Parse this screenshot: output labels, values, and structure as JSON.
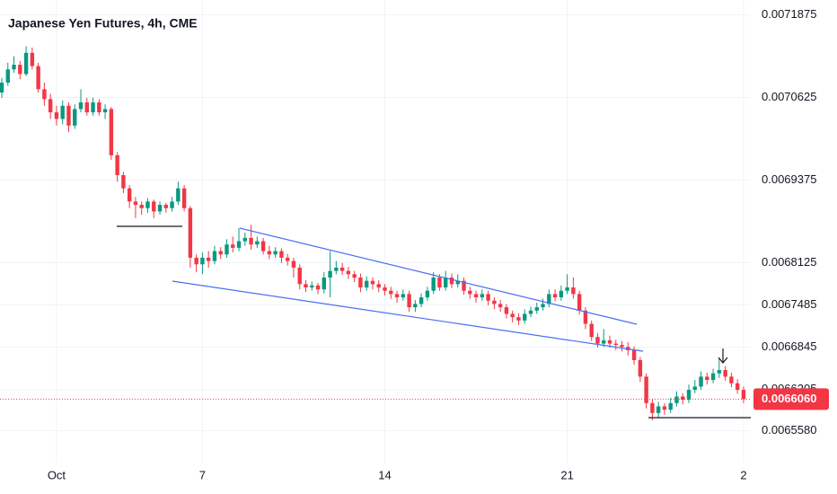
{
  "chart_data": {
    "type": "candlestick",
    "title": "Japanese Yen Futures, 4h, CME",
    "categories": [
      null,
      null,
      null,
      null,
      null,
      null,
      null,
      null,
      null,
      "Oct",
      null,
      null,
      null,
      null,
      null,
      null,
      null,
      null,
      null,
      null,
      null,
      null,
      null,
      null,
      null,
      null,
      null,
      null,
      null,
      null,
      null,
      null,
      null,
      "7",
      null,
      null,
      null,
      null,
      null,
      null,
      null,
      null,
      null,
      null,
      null,
      null,
      null,
      null,
      null,
      null,
      null,
      null,
      null,
      null,
      null,
      null,
      null,
      null,
      null,
      null,
      null,
      null,
      null,
      "14",
      null,
      null,
      null,
      null,
      null,
      null,
      null,
      null,
      null,
      null,
      null,
      null,
      null,
      null,
      null,
      null,
      null,
      null,
      null,
      null,
      null,
      null,
      null,
      null,
      null,
      null,
      null,
      null,
      null,
      "21",
      null,
      null,
      null,
      null,
      null,
      null,
      null,
      null,
      null,
      null,
      null,
      null,
      null,
      null,
      null,
      null,
      null,
      null,
      null,
      null,
      null,
      null,
      null,
      null,
      null,
      null,
      null,
      null,
      "2"
    ],
    "open": [
      0.00707,
      0.007085,
      0.007105,
      0.007112,
      0.007098,
      0.00713,
      0.00711,
      0.007075,
      0.00706,
      0.00704,
      0.00703,
      0.00705,
      0.00702,
      0.007045,
      0.007055,
      0.00704,
      0.007055,
      0.00704,
      0.007045,
      0.006975,
      0.006945,
      0.006925,
      0.006905,
      0.0069,
      0.006895,
      0.006905,
      0.00689,
      0.0069,
      0.006895,
      0.006905,
      0.006925,
      0.006895,
      0.00682,
      0.00681,
      0.00682,
      0.006815,
      0.00683,
      0.006825,
      0.00684,
      0.006835,
      0.006845,
      0.00685,
      0.00684,
      0.006845,
      0.00683,
      0.006825,
      0.00683,
      0.00682,
      0.006815,
      0.006805,
      0.00678,
      0.006775,
      0.006778,
      0.006772,
      0.00679,
      0.0068,
      0.006805,
      0.0068,
      0.006795,
      0.00679,
      0.006775,
      0.006785,
      0.00678,
      0.006775,
      0.00677,
      0.006765,
      0.00676,
      0.006765,
      0.006745,
      0.00675,
      0.00676,
      0.00677,
      0.00679,
      0.006775,
      0.00679,
      0.00678,
      0.006785,
      0.00677,
      0.006765,
      0.00676,
      0.006765,
      0.006755,
      0.00675,
      0.006745,
      0.006735,
      0.00673,
      0.006725,
      0.006735,
      0.00674,
      0.006745,
      0.00675,
      0.006765,
      0.00676,
      0.00677,
      0.006775,
      0.006765,
      0.00674,
      0.00672,
      0.0067,
      0.00669,
      0.006695,
      0.00669,
      0.006688,
      0.006685,
      0.00668,
      0.006665,
      0.00664,
      0.0066,
      0.006585,
      0.006595,
      0.00659,
      0.0066,
      0.00661,
      0.006605,
      0.00662,
      0.006625,
      0.00664,
      0.006635,
      0.006645,
      0.00665,
      0.00664,
      0.00663,
      0.00662
    ],
    "high": [
      0.007092,
      0.007115,
      0.007125,
      0.007118,
      0.00714,
      0.007138,
      0.007115,
      0.007085,
      0.007068,
      0.00705,
      0.007058,
      0.007055,
      0.007052,
      0.007075,
      0.007062,
      0.007062,
      0.00706,
      0.007052,
      0.007048,
      0.00698,
      0.00695,
      0.00693,
      0.006912,
      0.006905,
      0.00691,
      0.006908,
      0.006905,
      0.006903,
      0.006912,
      0.006935,
      0.00693,
      0.006898,
      0.006825,
      0.006828,
      0.00683,
      0.006838,
      0.006836,
      0.006848,
      0.006852,
      0.006865,
      0.006858,
      0.00687,
      0.006852,
      0.00685,
      0.006838,
      0.006836,
      0.006834,
      0.006826,
      0.00682,
      0.00681,
      0.006786,
      0.006784,
      0.006782,
      0.006798,
      0.00683,
      0.006815,
      0.006812,
      0.006806,
      0.0068,
      0.006796,
      0.006792,
      0.00679,
      0.006786,
      0.00678,
      0.006776,
      0.00677,
      0.006772,
      0.00677,
      0.006756,
      0.006766,
      0.006776,
      0.006798,
      0.006795,
      0.0068,
      0.006796,
      0.006795,
      0.00679,
      0.006776,
      0.00677,
      0.006772,
      0.00677,
      0.00676,
      0.006756,
      0.00675,
      0.00674,
      0.006736,
      0.006742,
      0.006746,
      0.006752,
      0.006758,
      0.006772,
      0.006772,
      0.006778,
      0.006795,
      0.00679,
      0.00677,
      0.006745,
      0.006725,
      0.006706,
      0.006712,
      0.006702,
      0.006696,
      0.006694,
      0.006692,
      0.006686,
      0.00667,
      0.006645,
      0.006606,
      0.006602,
      0.0066,
      0.006608,
      0.006618,
      0.006615,
      0.006628,
      0.006635,
      0.006648,
      0.006646,
      0.006652,
      0.006668,
      0.006656,
      0.006646,
      0.006636,
      0.006625
    ],
    "low": [
      0.007062,
      0.00708,
      0.0071,
      0.00709,
      0.007095,
      0.007105,
      0.00707,
      0.00705,
      0.00703,
      0.00702,
      0.007022,
      0.00701,
      0.007015,
      0.00704,
      0.007035,
      0.007035,
      0.007035,
      0.00703,
      0.006968,
      0.006935,
      0.006918,
      0.006895,
      0.00688,
      0.006885,
      0.006888,
      0.00688,
      0.006885,
      0.006888,
      0.00689,
      0.0069,
      0.00689,
      0.006805,
      0.006798,
      0.006795,
      0.006805,
      0.00681,
      0.006818,
      0.00682,
      0.006828,
      0.00683,
      0.006838,
      0.006832,
      0.006835,
      0.006825,
      0.006818,
      0.00682,
      0.006812,
      0.006808,
      0.00679,
      0.006772,
      0.006768,
      0.00677,
      0.006765,
      0.006766,
      0.00676,
      0.006795,
      0.006794,
      0.006788,
      0.006783,
      0.006768,
      0.00677,
      0.006772,
      0.006768,
      0.006763,
      0.006758,
      0.006752,
      0.006755,
      0.006738,
      0.006738,
      0.006745,
      0.006755,
      0.006765,
      0.00677,
      0.00677,
      0.006774,
      0.006775,
      0.006764,
      0.006758,
      0.006752,
      0.006755,
      0.006748,
      0.006742,
      0.006738,
      0.006728,
      0.006722,
      0.006718,
      0.00672,
      0.00673,
      0.006735,
      0.00674,
      0.006745,
      0.006754,
      0.006755,
      0.006765,
      0.006758,
      0.006734,
      0.006712,
      0.006694,
      0.006684,
      0.006685,
      0.006684,
      0.00668,
      0.006678,
      0.006672,
      0.006658,
      0.006632,
      0.006592,
      0.006574,
      0.006578,
      0.006582,
      0.006585,
      0.006595,
      0.006598,
      0.0066,
      0.006615,
      0.00662,
      0.006628,
      0.00663,
      0.006638,
      0.006634,
      0.006624,
      0.006614,
      0.0066
    ],
    "close": [
      0.007085,
      0.007105,
      0.007112,
      0.007098,
      0.00713,
      0.00711,
      0.007075,
      0.00706,
      0.00704,
      0.00703,
      0.00705,
      0.00702,
      0.007045,
      0.007055,
      0.00704,
      0.007055,
      0.00704,
      0.007045,
      0.006975,
      0.006945,
      0.006925,
      0.006905,
      0.0069,
      0.006895,
      0.006905,
      0.00689,
      0.0069,
      0.006895,
      0.006905,
      0.006925,
      0.006895,
      0.00682,
      0.00681,
      0.00682,
      0.006815,
      0.00683,
      0.006825,
      0.00684,
      0.006835,
      0.006845,
      0.00685,
      0.00684,
      0.006845,
      0.00683,
      0.006825,
      0.00683,
      0.00682,
      0.006815,
      0.006805,
      0.00678,
      0.006775,
      0.006778,
      0.006772,
      0.00679,
      0.0068,
      0.006805,
      0.0068,
      0.006795,
      0.00679,
      0.006775,
      0.006785,
      0.00678,
      0.006775,
      0.00677,
      0.006765,
      0.00676,
      0.006765,
      0.006745,
      0.00675,
      0.00676,
      0.00677,
      0.00679,
      0.006775,
      0.00679,
      0.00678,
      0.006785,
      0.00677,
      0.006765,
      0.00676,
      0.006765,
      0.006755,
      0.00675,
      0.006745,
      0.006735,
      0.00673,
      0.006725,
      0.006735,
      0.00674,
      0.006745,
      0.00675,
      0.006765,
      0.00676,
      0.00677,
      0.006775,
      0.006765,
      0.00674,
      0.00672,
      0.0067,
      0.00669,
      0.006695,
      0.00669,
      0.006688,
      0.006685,
      0.00668,
      0.006665,
      0.00664,
      0.0066,
      0.006585,
      0.006595,
      0.00659,
      0.0066,
      0.00661,
      0.006605,
      0.00662,
      0.006625,
      0.00664,
      0.006635,
      0.006645,
      0.00665,
      0.00664,
      0.00663,
      0.00662,
      0.006606
    ],
    "up_color": "#089981",
    "down_color": "#f23645",
    "ylim": [
      0.00651,
      0.00721
    ],
    "yticks": [
      0.0071875,
      0.0070625,
      0.0069375,
      0.0068125,
      0.0067485,
      0.0066845,
      0.0066205,
      {
        "value": 0.006558,
        "label": "0.0065580"
      }
    ],
    "grid": true,
    "last_price": {
      "value": 0.006606,
      "label": "0.0066060"
    }
  }
}
